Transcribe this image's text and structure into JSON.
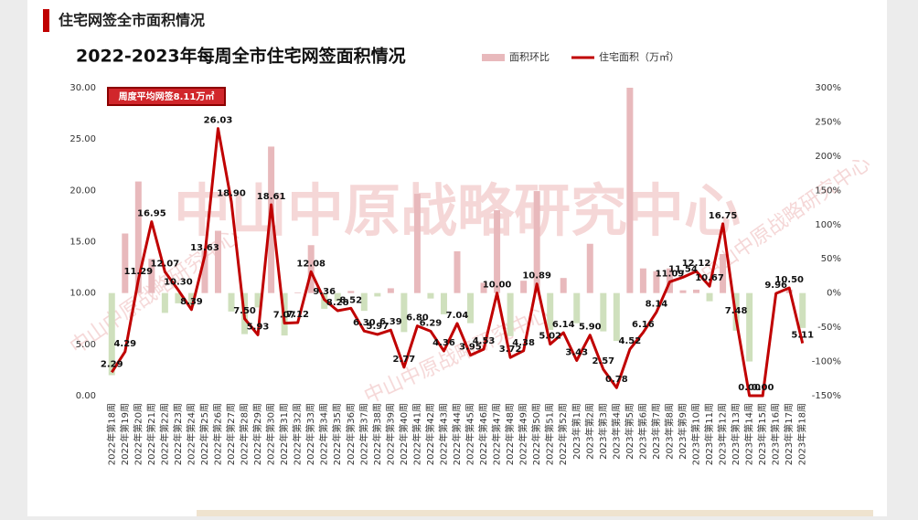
{
  "header": "住宅网签全市面积情况",
  "chart_data": {
    "type": "bar-line",
    "title": "2022-2023年每周全市住宅网签面积情况",
    "annotation": "周度平均网签8.11万㎡",
    "watermark": "中山中原战略研究中心",
    "categories": [
      "2022年第18周",
      "2022年第19周",
      "2022年第20周",
      "2022年第21周",
      "2022年第22周",
      "2022年第23周",
      "2022年第24周",
      "2022年第25周",
      "2022年第26周",
      "2022年第27周",
      "2022年第28周",
      "2022年第29周",
      "2022年第30周",
      "2022年第31周",
      "2022年第32周",
      "2022年第33周",
      "2022年第34周",
      "2022年第35周",
      "2022年第36周",
      "2022年第37周",
      "2022年第38周",
      "2022年第39周",
      "2022年第40周",
      "2022年第41周",
      "2022年第42周",
      "2022年第43周",
      "2022年第44周",
      "2022年第45周",
      "2022年第46周",
      "2022年第47周",
      "2022年第48周",
      "2022年第49周",
      "2022年第50周",
      "2022年第51周",
      "2022年第52周",
      "2023年第1周",
      "2023年第2周",
      "2023年第3周",
      "2023年第4周",
      "2023年第5周",
      "2023年第6周",
      "2023年第7周",
      "2023年第8周",
      "2023年第9周",
      "2023年第10周",
      "2023年第11周",
      "2023年第12周",
      "2023年第13周",
      "2023年第14周",
      "2023年第15周",
      "2023年第16周",
      "2023年第17周",
      "2023年第18周"
    ],
    "series": [
      {
        "name": "面积环比",
        "type": "bar",
        "axis": "y2",
        "color": "#e8b9bc",
        "negative_color": "#cfe0bd",
        "values": [
          -120,
          87,
          163,
          50,
          -29,
          -15,
          -19,
          62,
          91,
          -27,
          -60,
          -21,
          214,
          -62,
          1,
          70,
          -23,
          -12,
          3,
          -26,
          -5,
          7,
          -57,
          145,
          -8,
          -31,
          61,
          -44,
          15,
          121,
          -63,
          18,
          149,
          -54,
          22,
          -44,
          72,
          -56,
          -70,
          300,
          36,
          32,
          36,
          4,
          5,
          -12,
          57,
          -55,
          -100,
          null,
          null,
          5,
          -51
        ]
      },
      {
        "name": "住宅面积（万㎡）",
        "type": "line",
        "color": "#c00000",
        "values": [
          2.29,
          4.29,
          11.29,
          16.95,
          12.07,
          10.3,
          8.39,
          13.63,
          26.03,
          18.9,
          7.5,
          5.93,
          18.61,
          7.07,
          7.12,
          12.08,
          9.36,
          8.28,
          8.52,
          6.3,
          5.97,
          6.39,
          2.77,
          6.8,
          6.29,
          4.36,
          7.04,
          3.95,
          4.53,
          10.0,
          3.72,
          4.38,
          10.89,
          5.02,
          6.14,
          3.43,
          5.9,
          2.57,
          0.78,
          4.52,
          6.16,
          8.14,
          11.09,
          11.54,
          12.12,
          10.67,
          16.75,
          7.48,
          0.0,
          0.0,
          9.96,
          10.5,
          5.11
        ],
        "value_labels": [
          "2.29",
          "4.29",
          "11.29",
          "16.95",
          "12.07",
          "10.30",
          "8.39",
          "13.63",
          "26.03",
          "18.90",
          "7.50",
          "5.93",
          "18.61",
          "7.07",
          "7.12",
          "12.08",
          "9.36",
          "8.28",
          "8.52",
          "6.30",
          "5.97",
          "6.39",
          "2.77",
          "6.80",
          "6.29",
          "4.36",
          "7.04",
          "3.95",
          "4.53",
          "10.00",
          "3.72",
          "4.38",
          "10.89",
          "5.02",
          "6.14",
          "3.43",
          "5.90",
          "2.57",
          "0.78",
          "4.52",
          "6.16",
          "8.14",
          "11.09",
          "11.54",
          "12.12",
          "10.67",
          "16.75",
          "7.48",
          "0.00",
          "0.00",
          "9.96",
          "10.50",
          "5.11"
        ]
      }
    ],
    "ylim": [
      0,
      30
    ],
    "yticks": [
      {
        "value": 0,
        "label": "0.00"
      },
      {
        "value": 5,
        "label": "5.00"
      },
      {
        "value": 10,
        "label": "10.00"
      },
      {
        "value": 15,
        "label": "15.00"
      },
      {
        "value": 20,
        "label": "20.00"
      },
      {
        "value": 25,
        "label": "25.00"
      },
      {
        "value": 30,
        "label": "30.00"
      }
    ],
    "y2lim": [
      -150,
      300
    ],
    "y2ticks": [
      {
        "value": -150,
        "label": "-150%"
      },
      {
        "value": -100,
        "label": "-100%"
      },
      {
        "value": -50,
        "label": "-50%"
      },
      {
        "value": 0,
        "label": "0%"
      },
      {
        "value": 50,
        "label": "50%"
      },
      {
        "value": 100,
        "label": "100%"
      },
      {
        "value": 150,
        "label": "150%"
      },
      {
        "value": 200,
        "label": "200%"
      },
      {
        "value": 250,
        "label": "250%"
      },
      {
        "value": 300,
        "label": "300%"
      }
    ],
    "legend": "top-right",
    "grid": false
  }
}
